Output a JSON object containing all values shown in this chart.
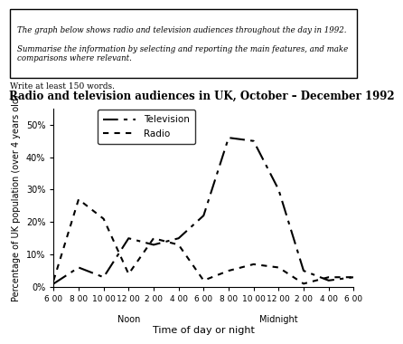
{
  "title": "Radio and television audiences in UK, October – December 1992",
  "xlabel": "Time of day or night",
  "ylabel": "Percentage of UK population (over 4 years old)",
  "prompt_text": "The graph below shows radio and television audiences throughout the day in 1992.\n\nSummarise the information by selecting and reporting the main features, and make\ncomparisons where relevant.",
  "write_text": "Write at least 150 words.",
  "x_ticks_labels": [
    "6 00",
    "8 00",
    "10 00",
    "12 00\nNoon",
    "2 00",
    "4 00",
    "6 00",
    "8 00",
    "10 00",
    "12 00\nMidnight",
    "2 00",
    "4 00",
    "6 00"
  ],
  "x_values": [
    0,
    2,
    4,
    6,
    8,
    10,
    12,
    14,
    16,
    18,
    20,
    22,
    24
  ],
  "tv_data": [
    1,
    6,
    3,
    15,
    13,
    15,
    22,
    46,
    45,
    30,
    5,
    2,
    3
  ],
  "radio_data": [
    2,
    27,
    21,
    4,
    15,
    13,
    2,
    5,
    7,
    6,
    1,
    3,
    3
  ],
  "ylim": [
    0,
    55
  ],
  "yticks": [
    0,
    10,
    20,
    30,
    40,
    50
  ],
  "ytick_labels": [
    "0%",
    "10%",
    "20%",
    "30%",
    "40%",
    "50%"
  ],
  "tv_color": "#000000",
  "radio_color": "#000000",
  "tv_linestyle": [
    8,
    4,
    2,
    4
  ],
  "radio_linestyle": [
    2,
    4
  ],
  "background_color": "#ffffff",
  "legend_tv": "Television",
  "legend_radio": "Radio"
}
